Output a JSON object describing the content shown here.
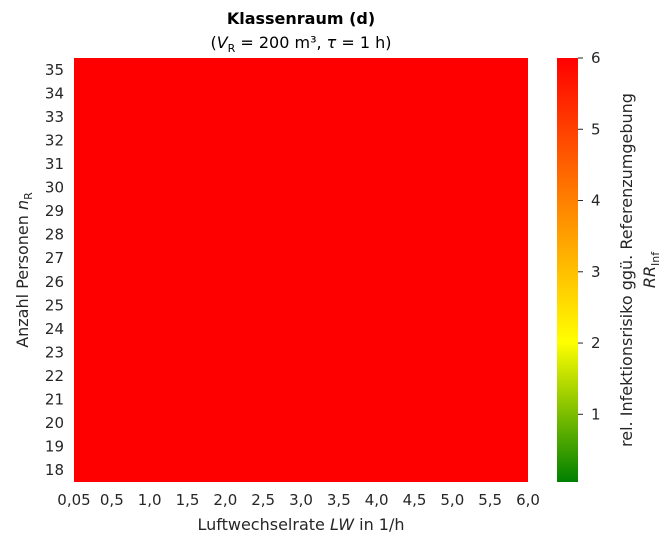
{
  "chart_data": {
    "type": "heatmap",
    "title": "Klassenraum (d)",
    "subtitle": {
      "open": "(",
      "v_symbol": "V",
      "v_sub": "R",
      "v_rest": " = 200 m³, ",
      "tau_symbol": "τ",
      "tau_rest": " = 1 h)"
    },
    "xlabel": {
      "prefix": "Luftwechselrate ",
      "symbol": "LW",
      "suffix": " in 1/h"
    },
    "ylabel": {
      "prefix": "Anzahl Personen ",
      "symbol": "n",
      "sub": "R"
    },
    "x_ticks": [
      "0,05",
      "0,5",
      "1,0",
      "1,5",
      "2,0",
      "2,5",
      "3,0",
      "3,5",
      "4,0",
      "4,5",
      "5,0",
      "5,5",
      "6,0"
    ],
    "y_ticks": [
      "35",
      "34",
      "33",
      "32",
      "31",
      "30",
      "29",
      "28",
      "27",
      "26",
      "25",
      "24",
      "23",
      "22",
      "21",
      "20",
      "19",
      "18"
    ],
    "uniform_value": 6,
    "colorbar": {
      "label_line1": "rel. Infektionsrisiko ggü. Referenzumgebung",
      "label_symbol": "RR",
      "label_sub": "Inf",
      "ticks": [
        "1",
        "2",
        "3",
        "4",
        "5",
        "6"
      ],
      "tick_values": [
        1,
        2,
        3,
        4,
        5,
        6
      ],
      "range": [
        0.05,
        6
      ],
      "colors": [
        "#008000",
        "#ffff00",
        "#ff0000"
      ]
    }
  }
}
